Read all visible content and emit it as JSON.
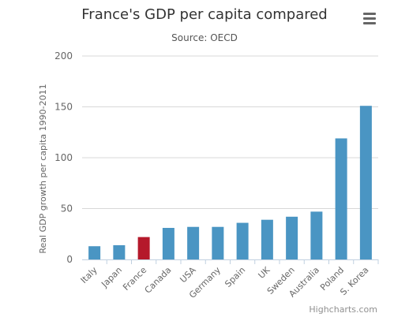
{
  "chart_data": {
    "type": "bar",
    "title": "France's GDP per capita compared",
    "subtitle": "Source: OECD",
    "xlabel": "",
    "ylabel": "Real GDP growth per capita 1990-2011",
    "ylim": [
      0,
      200
    ],
    "yticks": [
      "0",
      "50",
      "100",
      "150",
      "200"
    ],
    "grid": true,
    "categories": [
      "Italy",
      "Japan",
      "France",
      "Canada",
      "USA",
      "Germany",
      "Spain",
      "UK",
      "Sweden",
      "Australia",
      "Poland",
      "S. Korea"
    ],
    "values": [
      13,
      14,
      22,
      31,
      32,
      32,
      36,
      39,
      42,
      47,
      119,
      151
    ],
    "colors": {
      "default": "#4a95c3",
      "highlight": "#b5192b",
      "highlight_category": "France"
    }
  },
  "menu": {
    "icon": "hamburger-menu-icon"
  },
  "credits": "Highcharts.com"
}
